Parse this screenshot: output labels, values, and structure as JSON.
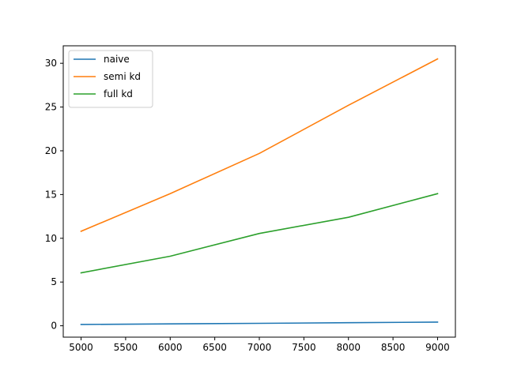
{
  "chart_data": {
    "type": "line",
    "title": "",
    "xlabel": "",
    "ylabel": "",
    "x": [
      5000,
      6000,
      7000,
      8000,
      9000
    ],
    "xlim": [
      4800,
      9200
    ],
    "ylim": [
      -1.3,
      32.0
    ],
    "xticks": [
      5000,
      5500,
      6000,
      6500,
      7000,
      7500,
      8000,
      8500,
      9000
    ],
    "yticks": [
      0,
      5,
      10,
      15,
      20,
      25,
      30
    ],
    "grid": false,
    "legend_position": "top-left",
    "series": [
      {
        "name": "naive",
        "color": "#1f77b4",
        "values": [
          0.15,
          0.22,
          0.28,
          0.35,
          0.42
        ]
      },
      {
        "name": "semi kd",
        "color": "#ff7f0e",
        "values": [
          10.8,
          15.1,
          19.7,
          25.2,
          30.5
        ]
      },
      {
        "name": "full kd",
        "color": "#2ca02c",
        "values": [
          6.05,
          7.95,
          10.55,
          12.4,
          15.1
        ]
      }
    ]
  }
}
